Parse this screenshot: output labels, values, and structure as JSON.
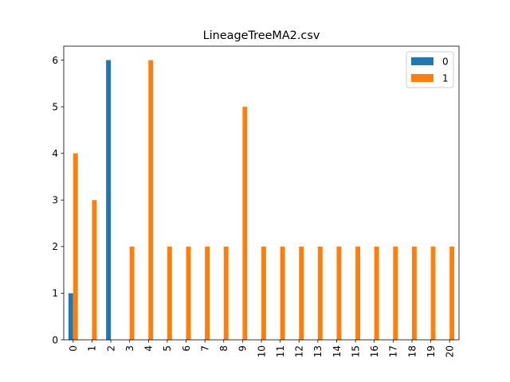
{
  "chart_data": {
    "type": "bar",
    "title": "LineageTreeMA2.csv",
    "xlabel": "",
    "ylabel": "",
    "categories": [
      "0",
      "1",
      "2",
      "3",
      "4",
      "5",
      "6",
      "7",
      "8",
      "9",
      "10",
      "11",
      "12",
      "13",
      "14",
      "15",
      "16",
      "17",
      "18",
      "19",
      "20"
    ],
    "series": [
      {
        "name": "0",
        "color": "#1f77b4",
        "values": [
          1,
          0,
          6,
          0,
          0,
          0,
          0,
          0,
          0,
          0,
          0,
          0,
          0,
          0,
          0,
          0,
          0,
          0,
          0,
          0,
          0
        ]
      },
      {
        "name": "1",
        "color": "#ff7f0e",
        "values": [
          4,
          3,
          0,
          2,
          6,
          2,
          2,
          2,
          2,
          5,
          2,
          2,
          2,
          2,
          2,
          2,
          2,
          2,
          2,
          2,
          2
        ]
      }
    ],
    "ylim": [
      0,
      6.3
    ],
    "yticks": [
      0,
      1,
      2,
      3,
      4,
      5,
      6
    ],
    "grid": false,
    "legend": "top-right",
    "x_tick_rotation": "vertical"
  }
}
